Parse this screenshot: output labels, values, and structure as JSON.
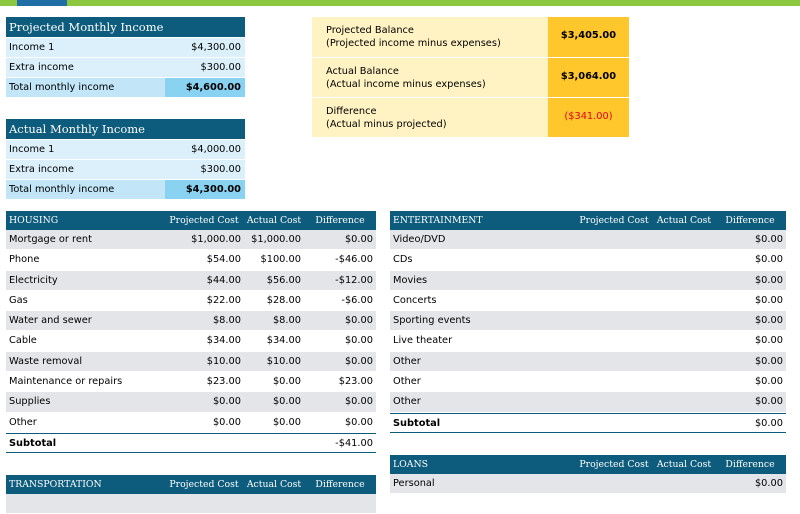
{
  "colors": {
    "accent_bar": "#8dc63f",
    "header_blue": "#0e5c7d",
    "total_blue": "#8ad2f2",
    "balance_gold": "#ffc72c",
    "negative_red": "#e3001b"
  },
  "projected_income": {
    "title": "Projected Monthly Income",
    "rows": [
      {
        "label": "Income 1",
        "value": "$4,300.00"
      },
      {
        "label": "Extra income",
        "value": "$300.00"
      }
    ],
    "total": {
      "label": "Total monthly income",
      "value": "$4,600.00"
    }
  },
  "actual_income": {
    "title": "Actual Monthly Income",
    "rows": [
      {
        "label": "Income 1",
        "value": "$4,000.00"
      },
      {
        "label": "Extra income",
        "value": "$300.00"
      }
    ],
    "total": {
      "label": "Total monthly income",
      "value": "$4,300.00"
    }
  },
  "balances": [
    {
      "label": "Projected Balance",
      "sub": "(Projected income minus expenses)",
      "value": "$3,405.00"
    },
    {
      "label": "Actual Balance",
      "sub": "(Actual income minus expenses)",
      "value": "$3,064.00"
    },
    {
      "label": "Difference",
      "sub": "(Actual minus projected)",
      "value": "($341.00)"
    }
  ],
  "columns": {
    "projected": "Projected Cost",
    "actual": "Actual Cost",
    "difference": "Difference"
  },
  "housing": {
    "title": "HOUSING",
    "rows": [
      {
        "label": "Mortgage or rent",
        "projected": "$1,000.00",
        "actual": "$1,000.00",
        "difference": "$0.00"
      },
      {
        "label": "Phone",
        "projected": "$54.00",
        "actual": "$100.00",
        "difference": "-$46.00"
      },
      {
        "label": "Electricity",
        "projected": "$44.00",
        "actual": "$56.00",
        "difference": "-$12.00"
      },
      {
        "label": "Gas",
        "projected": "$22.00",
        "actual": "$28.00",
        "difference": "-$6.00"
      },
      {
        "label": "Water and sewer",
        "projected": "$8.00",
        "actual": "$8.00",
        "difference": "$0.00"
      },
      {
        "label": "Cable",
        "projected": "$34.00",
        "actual": "$34.00",
        "difference": "$0.00"
      },
      {
        "label": "Waste removal",
        "projected": "$10.00",
        "actual": "$10.00",
        "difference": "$0.00"
      },
      {
        "label": "Maintenance or repairs",
        "projected": "$23.00",
        "actual": "$0.00",
        "difference": "$23.00"
      },
      {
        "label": "Supplies",
        "projected": "$0.00",
        "actual": "$0.00",
        "difference": "$0.00"
      },
      {
        "label": "Other",
        "projected": "$0.00",
        "actual": "$0.00",
        "difference": "$0.00"
      }
    ],
    "subtotal": {
      "label": "Subtotal",
      "projected": "",
      "actual": "",
      "difference": "-$41.00"
    }
  },
  "entertainment": {
    "title": "ENTERTAINMENT",
    "rows": [
      {
        "label": "Video/DVD",
        "projected": "",
        "actual": "",
        "difference": "$0.00"
      },
      {
        "label": "CDs",
        "projected": "",
        "actual": "",
        "difference": "$0.00"
      },
      {
        "label": "Movies",
        "projected": "",
        "actual": "",
        "difference": "$0.00"
      },
      {
        "label": "Concerts",
        "projected": "",
        "actual": "",
        "difference": "$0.00"
      },
      {
        "label": "Sporting events",
        "projected": "",
        "actual": "",
        "difference": "$0.00"
      },
      {
        "label": "Live theater",
        "projected": "",
        "actual": "",
        "difference": "$0.00"
      },
      {
        "label": "Other",
        "projected": "",
        "actual": "",
        "difference": "$0.00"
      },
      {
        "label": "Other",
        "projected": "",
        "actual": "",
        "difference": "$0.00"
      },
      {
        "label": "Other",
        "projected": "",
        "actual": "",
        "difference": "$0.00"
      }
    ],
    "subtotal": {
      "label": "Subtotal",
      "projected": "",
      "actual": "",
      "difference": "$0.00"
    }
  },
  "transportation": {
    "title": "TRANSPORTATION"
  },
  "loans": {
    "title": "LOANS",
    "rows": [
      {
        "label": "Personal",
        "projected": "",
        "actual": "",
        "difference": "$0.00"
      }
    ]
  }
}
